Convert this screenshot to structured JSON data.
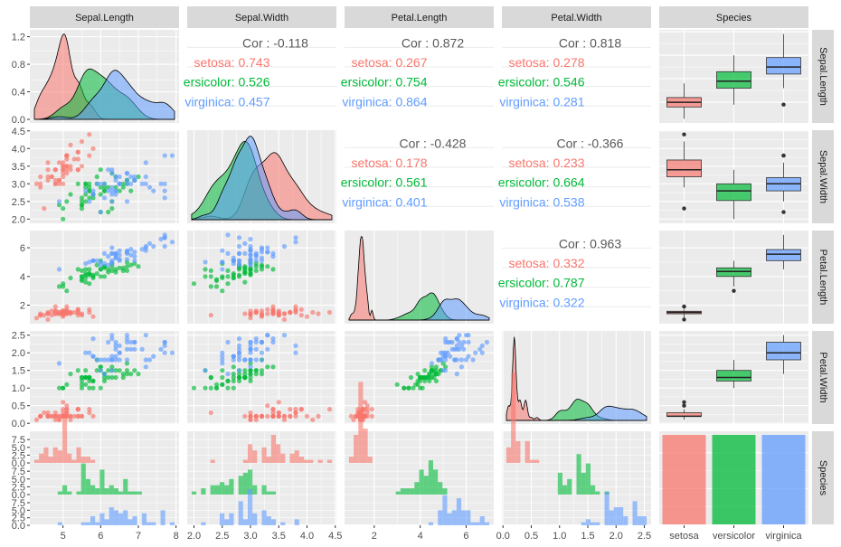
{
  "chart_data": {
    "type": "scatter",
    "variables": [
      "Sepal.Length",
      "Sepal.Width",
      "Petal.Length",
      "Petal.Width",
      "Species"
    ],
    "species": [
      "setosa",
      "versicolor",
      "virginica"
    ],
    "species_tick_labels": [
      "setosa",
      "versicolor",
      "virginica"
    ],
    "colors": {
      "setosa": "#F8766D",
      "versicolor": "#00BA38",
      "virginica": "#619CFF"
    },
    "ranges": {
      "Sepal.Length": [
        4.12,
        8.08
      ],
      "Sepal.Width": [
        1.88,
        4.52
      ],
      "Petal.Length": [
        0.71,
        7.2
      ],
      "Petal.Width": [
        -0.02,
        2.62
      ]
    },
    "ticks": {
      "Sepal.Length": {
        "x": [
          5,
          6,
          7,
          8
        ],
        "y": [
          0.0,
          0.4,
          0.8,
          1.2
        ]
      },
      "Sepal.Width": {
        "x": [
          "2.0",
          "2.5",
          "3.0",
          "3.5",
          "4.0",
          "4.5"
        ],
        "y": [
          "2.0",
          "2.5",
          "3.0",
          "3.5",
          "4.0",
          "4.5"
        ]
      },
      "Petal.Length": {
        "x": [
          2,
          4,
          6
        ],
        "y": [
          2,
          4,
          6
        ]
      },
      "Petal.Width": {
        "x": [
          "0.0",
          "0.5",
          "1.0",
          "1.5",
          "2.0",
          "2.5"
        ],
        "y": [
          "0.0",
          "0.5",
          "1.0",
          "1.5",
          "2.0",
          "2.5"
        ]
      },
      "count": [
        "0.0",
        "2.5",
        "5.0",
        "7.5"
      ]
    },
    "correlations": [
      {
        "row": "Sepal.Length",
        "col": "Sepal.Width",
        "total": "Cor : -0.118",
        "setosa": "setosa: 0.743",
        "versicolor": "ersicolor: 0.526",
        "virginica": "virginica: 0.457"
      },
      {
        "row": "Sepal.Length",
        "col": "Petal.Length",
        "total": "Cor : 0.872",
        "setosa": "setosa: 0.267",
        "versicolor": "ersicolor: 0.754",
        "virginica": "virginica: 0.864"
      },
      {
        "row": "Sepal.Length",
        "col": "Petal.Width",
        "total": "Cor : 0.818",
        "setosa": "setosa: 0.278",
        "versicolor": "ersicolor: 0.546",
        "virginica": "virginica: 0.281"
      },
      {
        "row": "Sepal.Width",
        "col": "Petal.Length",
        "total": "Cor : -0.428",
        "setosa": "setosa: 0.178",
        "versicolor": "ersicolor: 0.561",
        "virginica": "virginica: 0.401"
      },
      {
        "row": "Sepal.Width",
        "col": "Petal.Width",
        "total": "Cor : -0.366",
        "setosa": "setosa: 0.233",
        "versicolor": "ersicolor: 0.664",
        "virginica": "virginica: 0.538"
      },
      {
        "row": "Petal.Length",
        "col": "Petal.Width",
        "total": "Cor : 0.963",
        "setosa": "setosa: 0.332",
        "versicolor": "ersicolor: 0.787",
        "virginica": "virginica: 0.322"
      }
    ],
    "species_counts": {
      "setosa": 50,
      "versicolor": 50,
      "virginica": 50
    },
    "boxplots": {
      "Sepal.Length": {
        "setosa": {
          "min": 4.3,
          "q1": 4.8,
          "median": 5.0,
          "q3": 5.2,
          "max": 5.8,
          "outliers": []
        },
        "versicolor": {
          "min": 4.9,
          "q1": 5.6,
          "median": 5.9,
          "q3": 6.3,
          "max": 7.0,
          "outliers": []
        },
        "virginica": {
          "min": 5.6,
          "q1": 6.2,
          "median": 6.5,
          "q3": 6.9,
          "max": 7.9,
          "outliers": [
            4.9
          ]
        }
      },
      "Sepal.Width": {
        "setosa": {
          "min": 2.9,
          "q1": 3.2,
          "median": 3.4,
          "q3": 3.675,
          "max": 4.2,
          "outliers": [
            2.3,
            4.4
          ]
        },
        "versicolor": {
          "min": 2.0,
          "q1": 2.525,
          "median": 2.8,
          "q3": 3.0,
          "max": 3.4,
          "outliers": []
        },
        "virginica": {
          "min": 2.5,
          "q1": 2.8,
          "median": 3.0,
          "q3": 3.175,
          "max": 3.6,
          "outliers": [
            2.2,
            3.8,
            3.8
          ]
        }
      },
      "Petal.Length": {
        "setosa": {
          "min": 1.1,
          "q1": 1.4,
          "median": 1.5,
          "q3": 1.575,
          "max": 1.7,
          "outliers": [
            1.0,
            1.9,
            1.9
          ]
        },
        "versicolor": {
          "min": 3.3,
          "q1": 4.0,
          "median": 4.35,
          "q3": 4.6,
          "max": 5.1,
          "outliers": [
            3.0
          ]
        },
        "virginica": {
          "min": 4.5,
          "q1": 5.1,
          "median": 5.55,
          "q3": 5.875,
          "max": 6.9,
          "outliers": []
        }
      },
      "Petal.Width": {
        "setosa": {
          "min": 0.1,
          "q1": 0.2,
          "median": 0.2,
          "q3": 0.3,
          "max": 0.4,
          "outliers": [
            0.5,
            0.6
          ]
        },
        "versicolor": {
          "min": 1.0,
          "q1": 1.2,
          "median": 1.3,
          "q3": 1.5,
          "max": 1.8,
          "outliers": []
        },
        "virginica": {
          "min": 1.4,
          "q1": 1.8,
          "median": 2.0,
          "q3": 2.3,
          "max": 2.5,
          "outliers": []
        }
      }
    },
    "iris": {
      "setosa": [
        [
          5.1,
          3.5,
          1.4,
          0.2
        ],
        [
          4.9,
          3.0,
          1.4,
          0.2
        ],
        [
          4.7,
          3.2,
          1.3,
          0.2
        ],
        [
          4.6,
          3.1,
          1.5,
          0.2
        ],
        [
          5.0,
          3.6,
          1.4,
          0.2
        ],
        [
          5.4,
          3.9,
          1.7,
          0.4
        ],
        [
          4.6,
          3.4,
          1.4,
          0.3
        ],
        [
          5.0,
          3.4,
          1.5,
          0.2
        ],
        [
          4.4,
          2.9,
          1.4,
          0.2
        ],
        [
          4.9,
          3.1,
          1.5,
          0.1
        ],
        [
          5.4,
          3.7,
          1.5,
          0.2
        ],
        [
          4.8,
          3.4,
          1.6,
          0.2
        ],
        [
          4.8,
          3.0,
          1.4,
          0.1
        ],
        [
          4.3,
          3.0,
          1.1,
          0.1
        ],
        [
          5.8,
          4.0,
          1.2,
          0.2
        ],
        [
          5.7,
          4.4,
          1.5,
          0.4
        ],
        [
          5.4,
          3.9,
          1.3,
          0.4
        ],
        [
          5.1,
          3.5,
          1.4,
          0.3
        ],
        [
          5.7,
          3.8,
          1.7,
          0.3
        ],
        [
          5.1,
          3.8,
          1.5,
          0.3
        ],
        [
          5.4,
          3.4,
          1.7,
          0.2
        ],
        [
          5.1,
          3.7,
          1.5,
          0.4
        ],
        [
          4.6,
          3.6,
          1.0,
          0.2
        ],
        [
          5.1,
          3.3,
          1.7,
          0.5
        ],
        [
          4.8,
          3.4,
          1.9,
          0.2
        ],
        [
          5.0,
          3.0,
          1.6,
          0.2
        ],
        [
          5.0,
          3.4,
          1.6,
          0.4
        ],
        [
          5.2,
          3.5,
          1.5,
          0.2
        ],
        [
          5.2,
          3.4,
          1.4,
          0.2
        ],
        [
          4.7,
          3.2,
          1.6,
          0.2
        ],
        [
          4.8,
          3.1,
          1.6,
          0.2
        ],
        [
          5.4,
          3.4,
          1.5,
          0.4
        ],
        [
          5.2,
          4.1,
          1.5,
          0.1
        ],
        [
          5.5,
          4.2,
          1.4,
          0.2
        ],
        [
          4.9,
          3.1,
          1.5,
          0.2
        ],
        [
          5.0,
          3.2,
          1.2,
          0.2
        ],
        [
          5.5,
          3.5,
          1.3,
          0.2
        ],
        [
          4.9,
          3.6,
          1.4,
          0.1
        ],
        [
          4.4,
          3.0,
          1.3,
          0.2
        ],
        [
          5.1,
          3.4,
          1.5,
          0.2
        ],
        [
          5.0,
          3.5,
          1.3,
          0.3
        ],
        [
          4.5,
          2.3,
          1.3,
          0.3
        ],
        [
          4.4,
          3.2,
          1.3,
          0.2
        ],
        [
          5.0,
          3.5,
          1.6,
          0.6
        ],
        [
          5.1,
          3.8,
          1.9,
          0.4
        ],
        [
          4.8,
          3.0,
          1.4,
          0.3
        ],
        [
          5.1,
          3.8,
          1.6,
          0.2
        ],
        [
          4.6,
          3.2,
          1.4,
          0.2
        ],
        [
          5.3,
          3.7,
          1.5,
          0.2
        ],
        [
          5.0,
          3.3,
          1.4,
          0.2
        ]
      ],
      "versicolor": [
        [
          7.0,
          3.2,
          4.7,
          1.4
        ],
        [
          6.4,
          3.2,
          4.5,
          1.5
        ],
        [
          6.9,
          3.1,
          4.9,
          1.5
        ],
        [
          5.5,
          2.3,
          4.0,
          1.3
        ],
        [
          6.5,
          2.8,
          4.6,
          1.5
        ],
        [
          5.7,
          2.8,
          4.5,
          1.3
        ],
        [
          6.3,
          3.3,
          4.7,
          1.6
        ],
        [
          4.9,
          2.4,
          3.3,
          1.0
        ],
        [
          6.6,
          2.9,
          4.6,
          1.3
        ],
        [
          5.2,
          2.7,
          3.9,
          1.4
        ],
        [
          5.0,
          2.0,
          3.5,
          1.0
        ],
        [
          5.9,
          3.0,
          4.2,
          1.5
        ],
        [
          6.0,
          2.2,
          4.0,
          1.0
        ],
        [
          6.1,
          2.9,
          4.7,
          1.4
        ],
        [
          5.6,
          2.9,
          3.6,
          1.3
        ],
        [
          6.7,
          3.1,
          4.4,
          1.4
        ],
        [
          5.6,
          3.0,
          4.5,
          1.5
        ],
        [
          5.8,
          2.7,
          4.1,
          1.0
        ],
        [
          6.2,
          2.2,
          4.5,
          1.5
        ],
        [
          5.6,
          2.5,
          3.9,
          1.1
        ],
        [
          5.9,
          3.2,
          4.8,
          1.8
        ],
        [
          6.1,
          2.8,
          4.0,
          1.3
        ],
        [
          6.3,
          2.5,
          4.9,
          1.5
        ],
        [
          6.1,
          2.8,
          4.7,
          1.2
        ],
        [
          6.4,
          2.9,
          4.3,
          1.3
        ],
        [
          6.6,
          3.0,
          4.4,
          1.4
        ],
        [
          6.8,
          2.8,
          4.8,
          1.4
        ],
        [
          6.7,
          3.0,
          5.0,
          1.7
        ],
        [
          6.0,
          2.9,
          4.5,
          1.5
        ],
        [
          5.7,
          2.6,
          3.5,
          1.0
        ],
        [
          5.5,
          2.4,
          3.8,
          1.1
        ],
        [
          5.5,
          2.4,
          3.7,
          1.0
        ],
        [
          5.8,
          2.7,
          3.9,
          1.2
        ],
        [
          6.0,
          2.7,
          5.1,
          1.6
        ],
        [
          5.4,
          3.0,
          4.5,
          1.5
        ],
        [
          6.0,
          3.4,
          4.5,
          1.6
        ],
        [
          6.7,
          3.1,
          4.7,
          1.5
        ],
        [
          6.3,
          2.3,
          4.4,
          1.3
        ],
        [
          5.6,
          3.0,
          4.1,
          1.3
        ],
        [
          5.5,
          2.5,
          4.0,
          1.3
        ],
        [
          5.5,
          2.6,
          4.4,
          1.2
        ],
        [
          6.1,
          3.0,
          4.6,
          1.4
        ],
        [
          5.8,
          2.6,
          4.0,
          1.2
        ],
        [
          5.0,
          2.3,
          3.3,
          1.0
        ],
        [
          5.6,
          2.7,
          4.2,
          1.3
        ],
        [
          5.7,
          3.0,
          4.2,
          1.2
        ],
        [
          5.7,
          2.9,
          4.2,
          1.3
        ],
        [
          6.2,
          2.9,
          4.3,
          1.3
        ],
        [
          5.1,
          2.5,
          3.0,
          1.1
        ],
        [
          5.7,
          2.8,
          4.1,
          1.3
        ]
      ],
      "virginica": [
        [
          6.3,
          3.3,
          6.0,
          2.5
        ],
        [
          5.8,
          2.7,
          5.1,
          1.9
        ],
        [
          7.1,
          3.0,
          5.9,
          2.1
        ],
        [
          6.3,
          2.9,
          5.6,
          1.8
        ],
        [
          6.5,
          3.0,
          5.8,
          2.2
        ],
        [
          7.6,
          3.0,
          6.6,
          2.1
        ],
        [
          4.9,
          2.5,
          4.5,
          1.7
        ],
        [
          7.3,
          2.9,
          6.3,
          1.8
        ],
        [
          6.7,
          2.5,
          5.8,
          1.8
        ],
        [
          7.2,
          3.6,
          6.1,
          2.5
        ],
        [
          6.5,
          3.2,
          5.1,
          2.0
        ],
        [
          6.4,
          2.7,
          5.3,
          1.9
        ],
        [
          6.8,
          3.0,
          5.5,
          2.1
        ],
        [
          5.7,
          2.5,
          5.0,
          2.0
        ],
        [
          5.8,
          2.8,
          5.1,
          2.4
        ],
        [
          6.4,
          3.2,
          5.3,
          2.3
        ],
        [
          6.5,
          3.0,
          5.5,
          1.8
        ],
        [
          7.7,
          3.8,
          6.7,
          2.2
        ],
        [
          7.7,
          2.6,
          6.9,
          2.3
        ],
        [
          6.0,
          2.2,
          5.0,
          1.5
        ],
        [
          6.9,
          3.2,
          5.7,
          2.3
        ],
        [
          5.6,
          2.8,
          4.9,
          2.0
        ],
        [
          7.7,
          2.8,
          6.7,
          2.0
        ],
        [
          6.3,
          2.7,
          4.9,
          1.8
        ],
        [
          6.7,
          3.3,
          5.7,
          2.1
        ],
        [
          7.2,
          3.2,
          6.0,
          1.8
        ],
        [
          6.2,
          2.8,
          4.8,
          1.8
        ],
        [
          6.1,
          3.0,
          4.9,
          1.8
        ],
        [
          6.4,
          2.8,
          5.6,
          2.1
        ],
        [
          7.2,
          3.0,
          5.8,
          1.6
        ],
        [
          7.4,
          2.8,
          6.1,
          1.9
        ],
        [
          7.9,
          3.8,
          6.4,
          2.0
        ],
        [
          6.4,
          2.8,
          5.6,
          2.2
        ],
        [
          6.3,
          2.8,
          5.1,
          1.5
        ],
        [
          6.1,
          2.6,
          5.6,
          1.4
        ],
        [
          7.7,
          3.0,
          6.1,
          2.3
        ],
        [
          6.3,
          3.4,
          5.6,
          2.4
        ],
        [
          6.4,
          3.1,
          5.5,
          1.8
        ],
        [
          6.0,
          3.0,
          4.8,
          1.8
        ],
        [
          6.9,
          3.1,
          5.4,
          2.1
        ],
        [
          6.7,
          3.1,
          5.6,
          2.4
        ],
        [
          6.9,
          3.1,
          5.1,
          2.3
        ],
        [
          5.8,
          2.7,
          5.1,
          1.9
        ],
        [
          6.8,
          3.2,
          5.9,
          2.3
        ],
        [
          6.7,
          3.3,
          5.7,
          2.5
        ],
        [
          6.7,
          3.0,
          5.2,
          2.3
        ],
        [
          6.3,
          2.5,
          5.0,
          1.9
        ],
        [
          6.5,
          3.0,
          5.2,
          2.0
        ],
        [
          6.2,
          3.4,
          5.4,
          2.3
        ],
        [
          5.9,
          3.0,
          5.1,
          1.8
        ]
      ]
    }
  }
}
